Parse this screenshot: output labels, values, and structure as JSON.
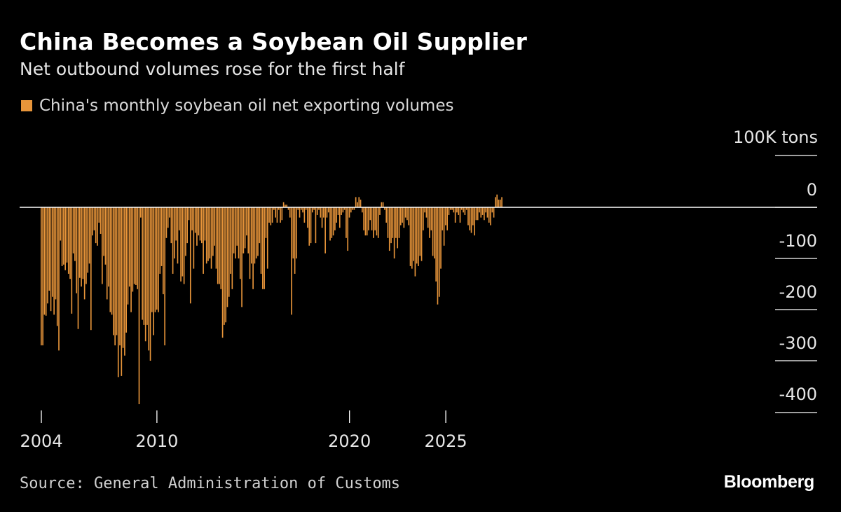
{
  "chart_data": {
    "type": "bar",
    "title": "China Becomes a Soybean Oil Supplier",
    "subtitle": "Net outbound volumes rose for the first half",
    "legend": [
      {
        "label": "China's monthly soybean oil net exporting volumes",
        "color": "#e8953a"
      }
    ],
    "legend_placement": "top-left",
    "unit_label": "100K tons",
    "ylim": [
      -400,
      0
    ],
    "yticks": [
      0,
      -100,
      -200,
      -300,
      -400
    ],
    "xticks": [
      2004,
      2010,
      2020,
      2025
    ],
    "grid": false,
    "bar_color": "#e8953a",
    "start": "2004-01",
    "series": [
      {
        "name": "China's monthly soybean oil net exporting volumes",
        "values": [
          -270,
          -270,
          -210,
          -212,
          -188,
          -163,
          -203,
          -175,
          -210,
          -180,
          -232,
          -280,
          -65,
          -115,
          -112,
          -123,
          -108,
          -130,
          -140,
          -208,
          -90,
          -105,
          -168,
          -238,
          -138,
          -155,
          -140,
          -180,
          -150,
          -128,
          -110,
          -240,
          -55,
          -45,
          -70,
          -75,
          -30,
          -52,
          -150,
          -95,
          -112,
          -180,
          -155,
          -205,
          -210,
          -250,
          -270,
          -250,
          -332,
          -270,
          -330,
          -275,
          -290,
          -245,
          -190,
          -155,
          -205,
          -165,
          -150,
          -152,
          -160,
          -385,
          -20,
          -220,
          -230,
          -262,
          -230,
          -280,
          -300,
          -205,
          -250,
          -205,
          -200,
          -205,
          -130,
          -115,
          -170,
          -270,
          -60,
          -40,
          -20,
          -70,
          -130,
          -100,
          -65,
          -110,
          -45,
          -145,
          -135,
          -150,
          -95,
          -70,
          -25,
          -188,
          -45,
          -120,
          -50,
          -75,
          -55,
          -65,
          -70,
          -130,
          -65,
          -110,
          -105,
          -100,
          -120,
          -95,
          -75,
          -120,
          -150,
          -150,
          -160,
          -255,
          -230,
          -225,
          -195,
          -175,
          -130,
          -160,
          -90,
          -100,
          -75,
          -100,
          -140,
          -195,
          -90,
          -80,
          -55,
          -90,
          -140,
          -110,
          -160,
          -110,
          -100,
          -95,
          -70,
          -130,
          -160,
          -160,
          -60,
          -120,
          -30,
          -35,
          -30,
          -5,
          -20,
          -30,
          -5,
          -30,
          -25,
          10,
          5,
          5,
          -5,
          -20,
          -210,
          -100,
          -130,
          -100,
          -5,
          -20,
          -5,
          -10,
          -30,
          -5,
          -40,
          -75,
          -70,
          -10,
          -5,
          -70,
          -15,
          -5,
          -20,
          -40,
          -20,
          -90,
          -20,
          -10,
          -65,
          -60,
          -55,
          -45,
          -30,
          -15,
          -40,
          -15,
          -10,
          -5,
          -60,
          -85,
          -20,
          -10,
          -5,
          -5,
          20,
          10,
          20,
          15,
          -10,
          -45,
          -55,
          -55,
          -45,
          -25,
          -45,
          -60,
          -45,
          -55,
          -60,
          -15,
          10,
          10,
          -5,
          -30,
          -60,
          -85,
          -70,
          -60,
          -100,
          -60,
          -80,
          -60,
          -35,
          -30,
          -40,
          -20,
          -25,
          -35,
          -115,
          -120,
          -105,
          -135,
          -110,
          -115,
          -95,
          -105,
          -45,
          -10,
          -20,
          -40,
          -60,
          -45,
          -95,
          -100,
          -145,
          -190,
          -175,
          -120,
          -45,
          -75,
          -35,
          -45,
          -15,
          -5,
          -5,
          -10,
          -30,
          -10,
          -15,
          -30,
          -5,
          -10,
          -15,
          -5,
          -35,
          -45,
          -50,
          -35,
          -55,
          -25,
          -25,
          -10,
          -20,
          -15,
          -25,
          -10,
          -20,
          -30,
          -35,
          -10,
          -20,
          20,
          25,
          15,
          15,
          20
        ]
      }
    ]
  },
  "footer": {
    "source": "Source: General Administration of Customs",
    "brand": "Bloomberg"
  }
}
